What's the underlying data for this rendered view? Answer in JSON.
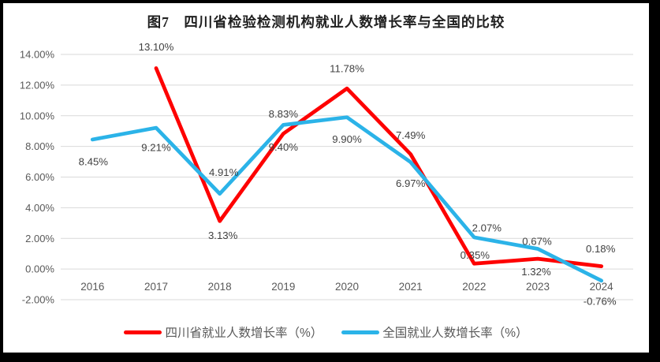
{
  "title": "图7　四川省检验检测机构就业人数增长率与全国的比较",
  "chart_data": {
    "type": "line",
    "categories": [
      "2016",
      "2017",
      "2018",
      "2019",
      "2020",
      "2021",
      "2022",
      "2023",
      "2024"
    ],
    "series": [
      {
        "name": "四川省就业人数增长率（%）",
        "color": "#fe0000",
        "values": [
          null,
          13.1,
          3.13,
          8.83,
          11.78,
          7.49,
          0.35,
          0.67,
          0.18
        ],
        "labels": [
          "",
          "13.10%",
          "3.13%",
          "8.83%",
          "11.78%",
          "7.49%",
          "0.35%",
          "0.67%",
          "0.18%"
        ],
        "label_offsets": [
          null,
          [
            0,
            -27
          ],
          [
            4,
            18
          ],
          [
            0,
            -25
          ],
          [
            0,
            -25
          ],
          [
            0,
            -24
          ],
          [
            1,
            -11
          ],
          [
            -1,
            -22
          ],
          [
            -1,
            -22
          ]
        ]
      },
      {
        "name": "全国就业人数增长率（%）",
        "color": "#2bb3e8",
        "values": [
          8.45,
          9.21,
          4.91,
          9.4,
          9.9,
          6.97,
          2.07,
          1.32,
          -0.76
        ],
        "labels": [
          "8.45%",
          "9.21%",
          "4.91%",
          "9.40%",
          "9.90%",
          "6.97%",
          "2.07%",
          "1.32%",
          "-0.76%"
        ],
        "label_offsets": [
          [
            1,
            28
          ],
          [
            0,
            25
          ],
          [
            5,
            -27
          ],
          [
            0,
            28
          ],
          [
            0,
            28
          ],
          [
            0,
            27
          ],
          [
            16,
            -12
          ],
          [
            -2,
            29
          ],
          [
            -2,
            26
          ]
        ]
      }
    ],
    "title": "图7　四川省检验检测机构就业人数增长率与全国的比较",
    "xlabel": "",
    "ylabel": "",
    "ylim": [
      -2,
      14
    ],
    "ytick_step": 2,
    "yticks": [
      "14.00%",
      "12.00%",
      "10.00%",
      "8.00%",
      "6.00%",
      "4.00%",
      "2.00%",
      "0.00%",
      "-2.00%"
    ],
    "grid": "horizontal",
    "legend_position": "bottom"
  },
  "colors": {
    "frame_background": "#000000",
    "chart_background": "#ffffff",
    "gridline": "#d9d9d9",
    "axis_text": "#595959",
    "data_label_text": "#404040",
    "title_text": "#1f1f1f"
  }
}
